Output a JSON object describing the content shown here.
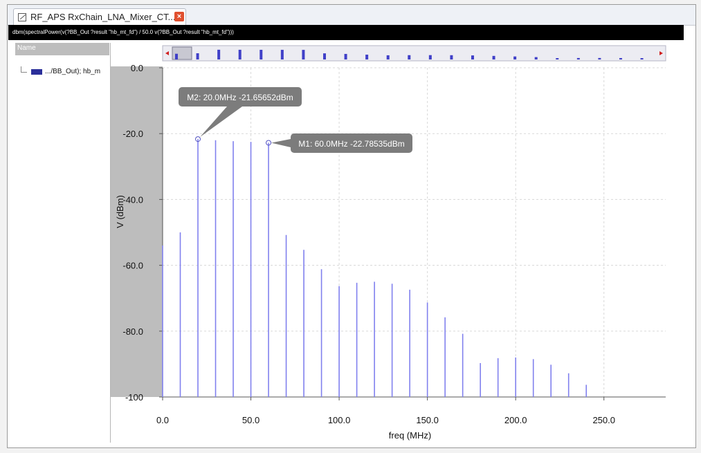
{
  "tab": {
    "title": "RF_APS RxChain_LNA_Mixer_CT...",
    "close_glyph": "×"
  },
  "path_text": "dbm(spectralPower(v(?BB_Out ?result \"hb_mt_fd\") / 50.0 v(?BB_Out ?result \"hb_mt_fd\")))",
  "panel": {
    "header": "Name",
    "item_label": ".../BB_Out); hb_m",
    "item_color": "#2b2f9a"
  },
  "chart_data": {
    "type": "bar",
    "xlabel": "freq (MHz)",
    "ylabel": "V (dBm)",
    "xlim": [
      0,
      285
    ],
    "ylim": [
      -100,
      0
    ],
    "x_ticks": [
      0,
      50,
      100,
      150,
      200,
      250
    ],
    "x_tick_labels": [
      "0.0",
      "50.0",
      "100.0",
      "150.0",
      "200.0",
      "250.0"
    ],
    "y_ticks": [
      0,
      -20,
      -40,
      -60,
      -80,
      -100
    ],
    "y_tick_labels": [
      "0.0",
      "-20.0",
      "-40.0",
      "-60.0",
      "-80.0",
      "-100"
    ],
    "grid": true,
    "line_color": "#8080ee",
    "x": [
      0,
      10,
      20,
      30,
      40,
      50,
      60,
      70,
      80,
      90,
      100,
      110,
      120,
      130,
      140,
      150,
      160,
      170,
      180,
      190,
      200,
      210,
      220,
      230,
      240
    ],
    "values": [
      -54,
      -50,
      -21.66,
      -22,
      -22.3,
      -22.5,
      -22.79,
      -50.8,
      -55.3,
      -61.2,
      -66.3,
      -65.3,
      -65.0,
      -65.6,
      -67.4,
      -71.3,
      -75.8,
      -80.8,
      -89.7,
      -88.2,
      -88.0,
      -88.5,
      -90.2,
      -92.8,
      -96.3
    ],
    "markers": [
      {
        "name": "M2",
        "x": 20,
        "y": -21.65652,
        "label": "M2: 20.0MHz -21.65652dBm"
      },
      {
        "name": "M1",
        "x": 60,
        "y": -22.78535,
        "label": "M1: 60.0MHz -22.78535dBm"
      }
    ]
  }
}
